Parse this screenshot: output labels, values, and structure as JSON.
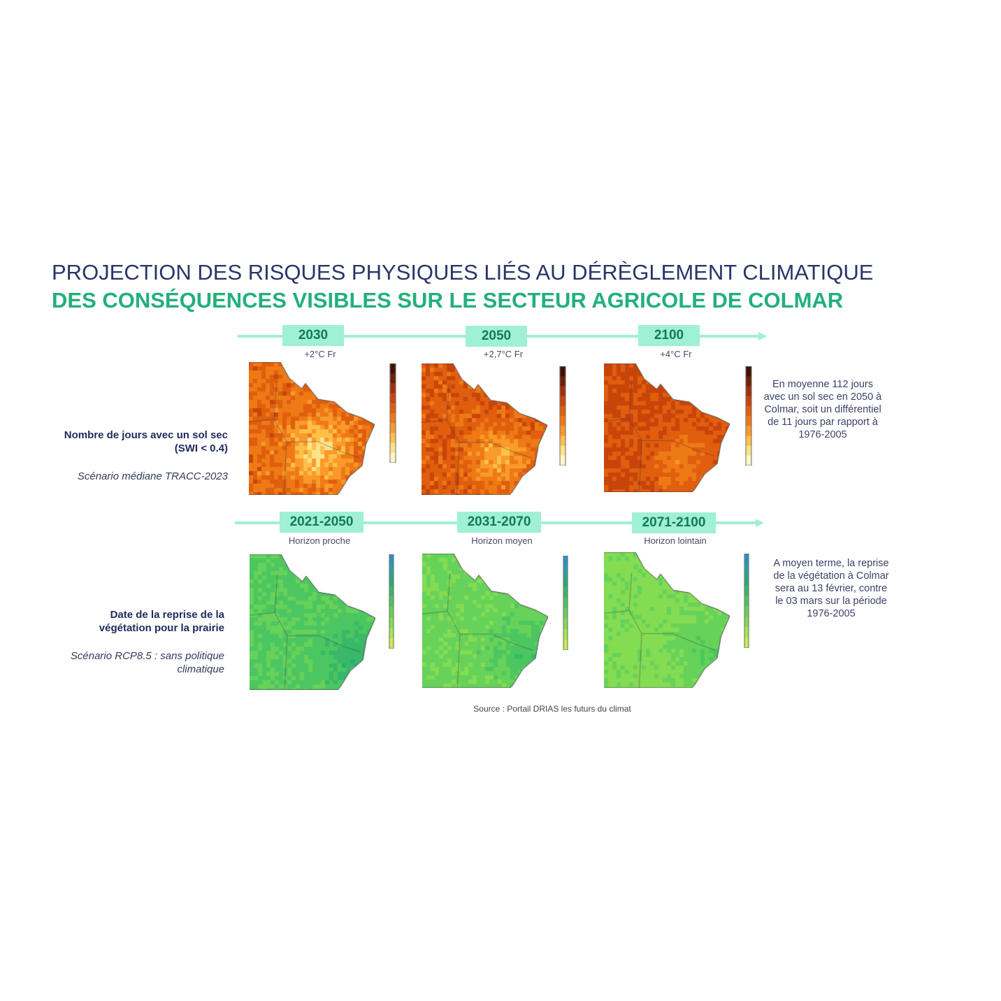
{
  "title_line1": "PROJECTION DES RISQUES PHYSIQUES LIÉS AU DÉRÈGLEMENT CLIMATIQUE",
  "title_line2": "DES CONSÉQUENCES VISIBLES SUR LE SECTEUR AGRICOLE DE COLMAR",
  "row1": {
    "label": "Nombre de jours avec un sol sec (SWI < 0.4)",
    "scenario": "Scénario médiane TRACC-2023",
    "timeline": [
      {
        "label": "2030",
        "sub": "+2°C Fr"
      },
      {
        "label": "2050",
        "sub": "+2,7°C Fr"
      },
      {
        "label": "2100",
        "sub": "+4°C Fr"
      }
    ],
    "note": "En moyenne 112 jours avec un sol sec en 2050 à Colmar, soit un différentiel de 11 jours par rapport à 1976-2005",
    "palette": [
      "#fff8c8",
      "#ffe38a",
      "#ffc04a",
      "#f99a2a",
      "#ee7a16",
      "#e05e0e",
      "#c8450a",
      "#a0300a",
      "#6e1f08",
      "#3e1004"
    ]
  },
  "row2": {
    "label": "Date de la reprise de la végétation pour la prairie",
    "scenario": "Scénario RCP8.5 : sans politique climatique",
    "timeline": [
      {
        "label": "2021-2050",
        "sub": "Horizon proche"
      },
      {
        "label": "2031-2070",
        "sub": "Horizon moyen"
      },
      {
        "label": "2071-2100",
        "sub": "Horizon lointain"
      }
    ],
    "note": "A moyen terme, la reprise de la végétation à Colmar sera au 13 février, contre le 03 mars sur la période 1976-2005",
    "palette": [
      "#c8f050",
      "#a6e84e",
      "#84dc52",
      "#66d25a",
      "#4cc660",
      "#38b868",
      "#2aa878",
      "#2aa0a0",
      "#3090c0"
    ]
  },
  "source": "Source : Portail DRIAS les futurs du climat"
}
